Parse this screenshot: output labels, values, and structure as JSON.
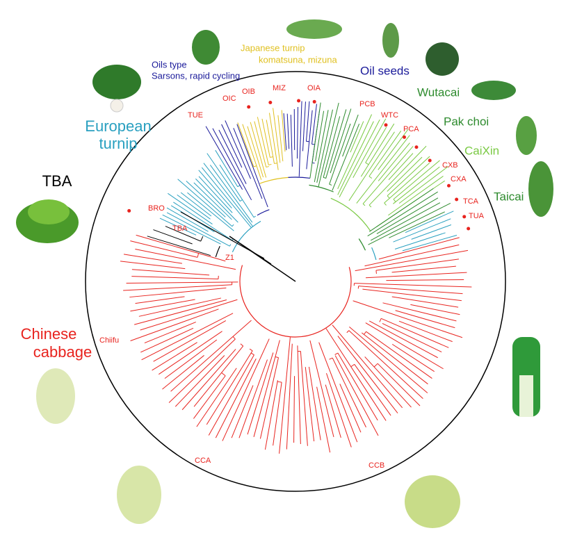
{
  "groups": {
    "tba": "TBA",
    "european_turnip": [
      "European",
      "turnip"
    ],
    "oils_type": [
      "Oils type",
      "Sarsons, rapid cycling"
    ],
    "japanese_turnip": [
      "Japanese turnip",
      "komatsuna, mizuna"
    ],
    "oil_seeds": "Oil seeds",
    "wutacai": "Wutacai",
    "pak_choi": "Pak choi",
    "caixin": "CaiXin",
    "taicai": "Taicai",
    "chinese_cabbage": [
      "Chinese",
      "cabbage"
    ]
  },
  "accessions": {
    "tue": "TUE",
    "oic": "OIC",
    "oib": "OIB",
    "miz": "MIZ",
    "oia": "OIA",
    "pcb": "PCB",
    "wtc": "WTC",
    "pca": "PCA",
    "cxb": "CXB",
    "cxa": "CXA",
    "tca": "TCA",
    "tua": "TUA",
    "bro": "BRO",
    "tba": "TBA",
    "z1": "Z1",
    "chiifu": "Chiifu",
    "cca": "CCA",
    "ccb": "CCB"
  }
}
